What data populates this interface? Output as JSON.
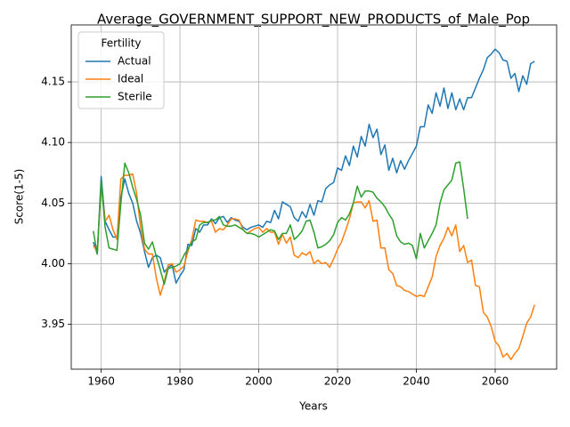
{
  "chart_data": {
    "type": "line",
    "title": "Average_GOVERNMENT_SUPPORT_NEW_PRODUCTS_of_Male_Pop",
    "xlabel": "Years",
    "ylabel": "Score(1-5)",
    "legend_title": "Fertility",
    "legend": "upper left",
    "grid": true,
    "xlim": [
      1952.4,
      2075.6
    ],
    "ylim": [
      3.913,
      4.197
    ],
    "xticks": [
      1960,
      1980,
      2000,
      2020,
      2040,
      2060
    ],
    "yticks": [
      3.95,
      {
        "value": 4,
        "label": "4.00"
      },
      4.05,
      {
        "value": 4.1,
        "label": "4.10"
      },
      4.15
    ],
    "x": [
      1958,
      1959,
      1960,
      1961,
      1962,
      1963,
      1964,
      1965,
      1966,
      1967,
      1968,
      1969,
      1970,
      1971,
      1972,
      1973,
      1974,
      1975,
      1976,
      1977,
      1978,
      1979,
      1980,
      1981,
      1982,
      1983,
      1984,
      1985,
      1986,
      1987,
      1988,
      1989,
      1990,
      1991,
      1992,
      1993,
      1994,
      1995,
      1996,
      1997,
      1998,
      1999,
      2000,
      2001,
      2002,
      2003,
      2004,
      2005,
      2006,
      2007,
      2008,
      2009,
      2010,
      2011,
      2012,
      2013,
      2014,
      2015,
      2016,
      2017,
      2018,
      2019,
      2020,
      2021,
      2022,
      2023,
      2024,
      2025,
      2026,
      2027,
      2028,
      2029,
      2030,
      2031,
      2032,
      2033,
      2034,
      2035,
      2036,
      2037,
      2038,
      2039,
      2040,
      2041,
      2042,
      2043,
      2044,
      2045,
      2046,
      2047,
      2048,
      2049,
      2050,
      2051,
      2052,
      2053,
      2054,
      2055,
      2056,
      2057,
      2058,
      2059,
      2060,
      2061,
      2062,
      2063,
      2064,
      2065,
      2066,
      2067,
      2068,
      2069,
      2070
    ],
    "series": [
      {
        "name": "Actual",
        "color": "#1f77b4",
        "values": [
          4.018,
          4.008,
          4.072,
          4.035,
          4.028,
          4.022,
          4.022,
          4.055,
          4.07,
          4.058,
          4.05,
          4.035,
          4.025,
          4.01,
          3.997,
          4.005,
          4.007,
          4.005,
          3.993,
          3.997,
          3.999,
          3.984,
          3.99,
          3.995,
          4.016,
          4.015,
          4.029,
          4.026,
          4.032,
          4.032,
          4.037,
          4.033,
          4.038,
          4.039,
          4.034,
          4.038,
          4.036,
          4.035,
          4.03,
          4.028,
          4.03,
          4.031,
          4.032,
          4.03,
          4.035,
          4.034,
          4.044,
          4.037,
          4.051,
          4.049,
          4.047,
          4.038,
          4.035,
          4.043,
          4.038,
          4.049,
          4.04,
          4.052,
          4.051,
          4.062,
          4.065,
          4.067,
          4.079,
          4.077,
          4.089,
          4.081,
          4.097,
          4.088,
          4.105,
          4.097,
          4.115,
          4.104,
          4.111,
          4.09,
          4.098,
          4.077,
          4.087,
          4.075,
          4.085,
          4.078,
          4.085,
          4.091,
          4.097,
          4.113,
          4.113,
          4.131,
          4.124,
          4.141,
          4.13,
          4.145,
          4.128,
          4.141,
          4.127,
          4.136,
          4.127,
          4.137,
          4.137,
          4.145,
          4.153,
          4.16,
          4.17,
          4.173,
          4.177,
          4.174,
          4.168,
          4.167,
          4.153,
          4.157,
          4.142,
          4.155,
          4.148,
          4.165,
          4.167
        ]
      },
      {
        "name": "Ideal",
        "color": "#ff7f0e",
        "values": [
          4.015,
          4.01,
          4.065,
          4.035,
          4.04,
          4.028,
          4.02,
          4.07,
          4.073,
          4.073,
          4.074,
          4.058,
          4.03,
          4.012,
          4.008,
          4.008,
          3.988,
          3.974,
          3.985,
          3.999,
          4.0,
          3.993,
          3.995,
          3.998,
          4.01,
          4.02,
          4.036,
          4.035,
          4.035,
          4.034,
          4.035,
          4.026,
          4.029,
          4.028,
          4.032,
          4.037,
          4.037,
          4.036,
          4.028,
          4.025,
          4.027,
          4.029,
          4.03,
          4.026,
          4.029,
          4.026,
          4.026,
          4.016,
          4.024,
          4.017,
          4.022,
          4.007,
          4.005,
          4.009,
          4.007,
          4.01,
          4.0,
          4.003,
          4.0,
          4.001,
          3.997,
          4.004,
          4.012,
          4.018,
          4.027,
          4.037,
          4.05,
          4.051,
          4.051,
          4.046,
          4.052,
          4.035,
          4.036,
          4.013,
          4.013,
          3.995,
          3.992,
          3.982,
          3.981,
          3.978,
          3.977,
          3.975,
          3.973,
          3.974,
          3.973,
          3.981,
          3.989,
          4.006,
          4.015,
          4.021,
          4.03,
          4.023,
          4.032,
          4.01,
          4.015,
          4.001,
          4.003,
          3.982,
          3.981,
          3.96,
          3.956,
          3.948,
          3.936,
          3.932,
          3.923,
          3.926,
          3.921,
          3.926,
          3.93,
          3.94,
          3.951,
          3.956,
          3.966
        ]
      },
      {
        "name": "Sterile",
        "color": "#2ca02c",
        "values": [
          4.027,
          4.008,
          4.068,
          4.03,
          4.013,
          4.012,
          4.011,
          4.05,
          4.083,
          4.075,
          4.063,
          4.053,
          4.04,
          4.017,
          4.012,
          4.018,
          4.006,
          3.995,
          3.983,
          3.996,
          3.997,
          3.998,
          4.0,
          4.007,
          4.012,
          4.018,
          4.02,
          4.032,
          4.034,
          4.034,
          4.036,
          4.036,
          4.039,
          4.032,
          4.031,
          4.031,
          4.032,
          4.03,
          4.028,
          4.025,
          4.025,
          4.024,
          4.022,
          4.024,
          4.026,
          4.028,
          4.027,
          4.02,
          4.025,
          4.025,
          4.032,
          4.02,
          4.023,
          4.027,
          4.035,
          4.036,
          4.026,
          4.013,
          4.014,
          4.016,
          4.019,
          4.024,
          4.034,
          4.038,
          4.036,
          4.041,
          4.05,
          4.064,
          4.055,
          4.06,
          4.06,
          4.059,
          4.054,
          4.051,
          4.047,
          4.041,
          4.036,
          4.023,
          4.018,
          4.016,
          4.017,
          4.015,
          4.004,
          4.025,
          4.013,
          4.019,
          4.025,
          4.032,
          4.05,
          4.061,
          4.065,
          4.069,
          4.083,
          4.084,
          4.062,
          4.037,
          null,
          null,
          null,
          null,
          null,
          null,
          null,
          null,
          null,
          null,
          null,
          null,
          null,
          null,
          null,
          null,
          null
        ]
      }
    ]
  }
}
